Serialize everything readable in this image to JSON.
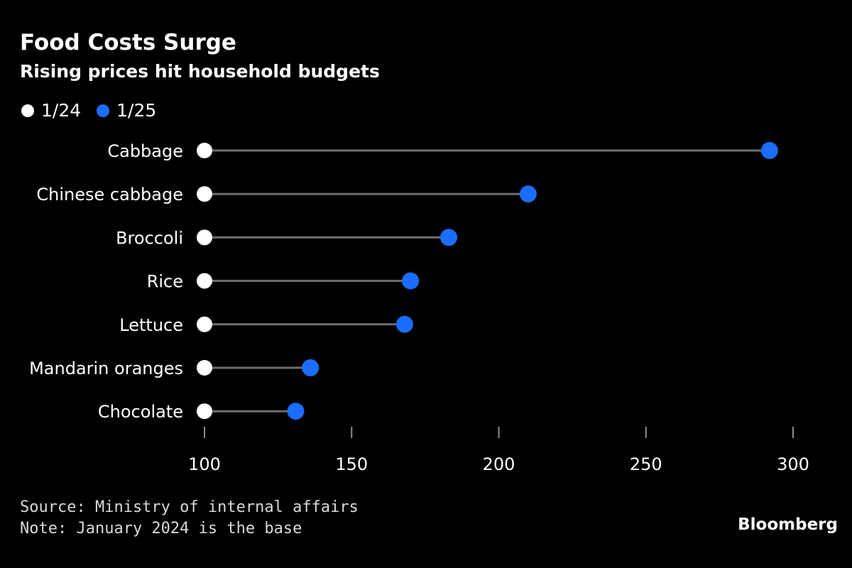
{
  "header": {
    "title": "Food Costs Surge",
    "subtitle": "Rising prices hit household budgets"
  },
  "colors": {
    "background": "#000000",
    "series_1": "#ffffff",
    "series_2": "#1a6dff",
    "connector": "#6e6e6e",
    "tick": "#8c8c8c"
  },
  "chart_data": {
    "type": "dot",
    "title": "Food Costs Surge",
    "subtitle": "Rising prices hit household budgets",
    "categories": [
      "Cabbage",
      "Chinese cabbage",
      "Broccoli",
      "Rice",
      "Lettuce",
      "Mandarin oranges",
      "Chocolate"
    ],
    "series": [
      {
        "name": "1/24",
        "color": "#ffffff",
        "values": [
          100,
          100,
          100,
          100,
          100,
          100,
          100
        ]
      },
      {
        "name": "1/25",
        "color": "#1a6dff",
        "values": [
          292,
          210,
          183,
          170,
          168,
          136,
          131
        ]
      }
    ],
    "xlim": [
      100,
      300
    ],
    "xticks": [
      100,
      150,
      200,
      250,
      300
    ],
    "xlabel": "",
    "ylabel": "",
    "legend": "top-left",
    "grid": false
  },
  "footer": {
    "source": "Source: Ministry of internal affairs",
    "note": "Note: January 2024 is the base",
    "brand": "Bloomberg"
  }
}
